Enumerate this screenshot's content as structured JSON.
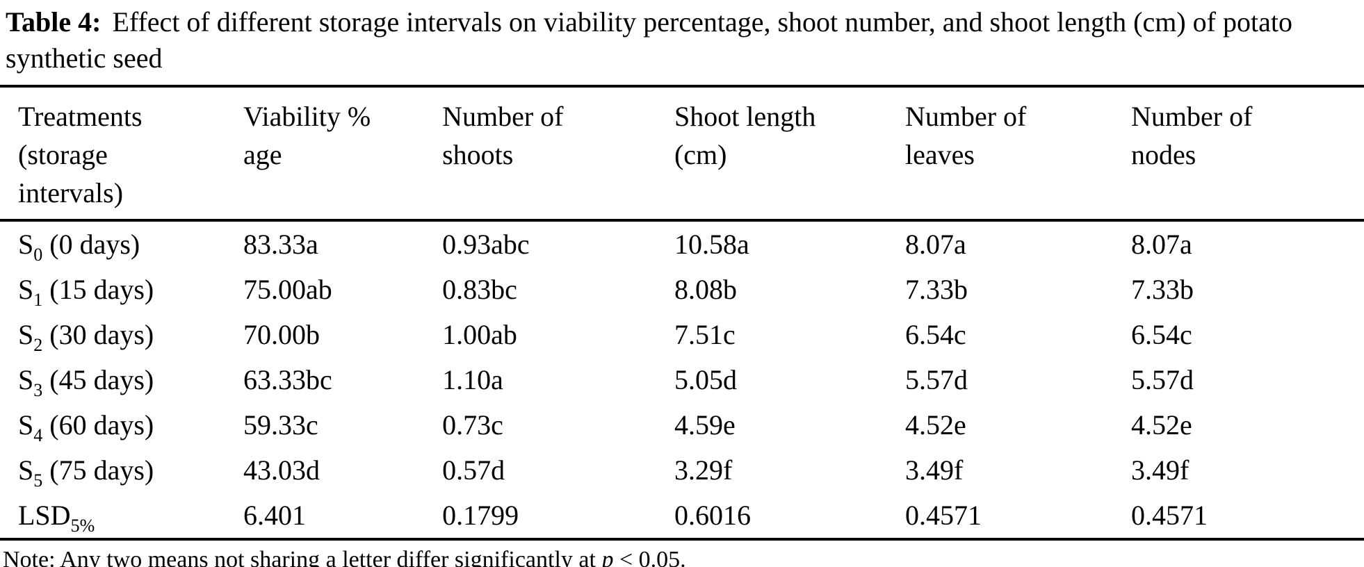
{
  "title": {
    "label": "Table 4:",
    "text": "Effect of different storage intervals on viability percentage, shoot number, and shoot length (cm) of potato synthetic seed"
  },
  "table": {
    "columns": [
      {
        "name": "treatments",
        "lines": [
          "Treatments",
          "(storage",
          "intervals)"
        ]
      },
      {
        "name": "viability",
        "lines": [
          "Viability %",
          "age"
        ]
      },
      {
        "name": "shoot-number",
        "lines": [
          "Number of",
          "shoots"
        ]
      },
      {
        "name": "shoot-length",
        "lines": [
          "Shoot length",
          "(cm)"
        ]
      },
      {
        "name": "leaf-number",
        "lines": [
          "Number of",
          "leaves"
        ]
      },
      {
        "name": "node-number",
        "lines": [
          "Number of",
          "nodes"
        ]
      }
    ],
    "rows": [
      {
        "label": {
          "base": "S",
          "sub": "0",
          "rest": " (0 days)"
        },
        "values": [
          "83.33a",
          "0.93abc",
          "10.58a",
          "8.07a",
          "8.07a"
        ]
      },
      {
        "label": {
          "base": "S",
          "sub": "1",
          "rest": " (15 days)"
        },
        "values": [
          "75.00ab",
          "0.83bc",
          "8.08b",
          "7.33b",
          "7.33b"
        ]
      },
      {
        "label": {
          "base": "S",
          "sub": "2",
          "rest": " (30 days)"
        },
        "values": [
          "70.00b",
          "1.00ab",
          "7.51c",
          "6.54c",
          "6.54c"
        ]
      },
      {
        "label": {
          "base": "S",
          "sub": "3",
          "rest": " (45 days)"
        },
        "values": [
          "63.33bc",
          "1.10a",
          "5.05d",
          "5.57d",
          "5.57d"
        ]
      },
      {
        "label": {
          "base": "S",
          "sub": "4",
          "rest": " (60 days)"
        },
        "values": [
          "59.33c",
          "0.73c",
          "4.59e",
          "4.52e",
          "4.52e"
        ]
      },
      {
        "label": {
          "base": "S",
          "sub": "5",
          "rest": " (75 days)"
        },
        "values": [
          "43.03d",
          "0.57d",
          "3.29f",
          "3.49f",
          "3.49f"
        ]
      },
      {
        "label": {
          "base": "LSD",
          "sub": "5%",
          "rest": ""
        },
        "values": [
          "6.401",
          "0.1799",
          "0.6016",
          "0.4571",
          "0.4571"
        ]
      }
    ]
  },
  "note": {
    "prefix": "Note: Any two means not sharing a letter differ significantly at ",
    "symbol": "p",
    "suffix": " < 0.05."
  },
  "colors": {
    "text": "#000000",
    "background": "#ffffff",
    "rule": "#000000"
  }
}
